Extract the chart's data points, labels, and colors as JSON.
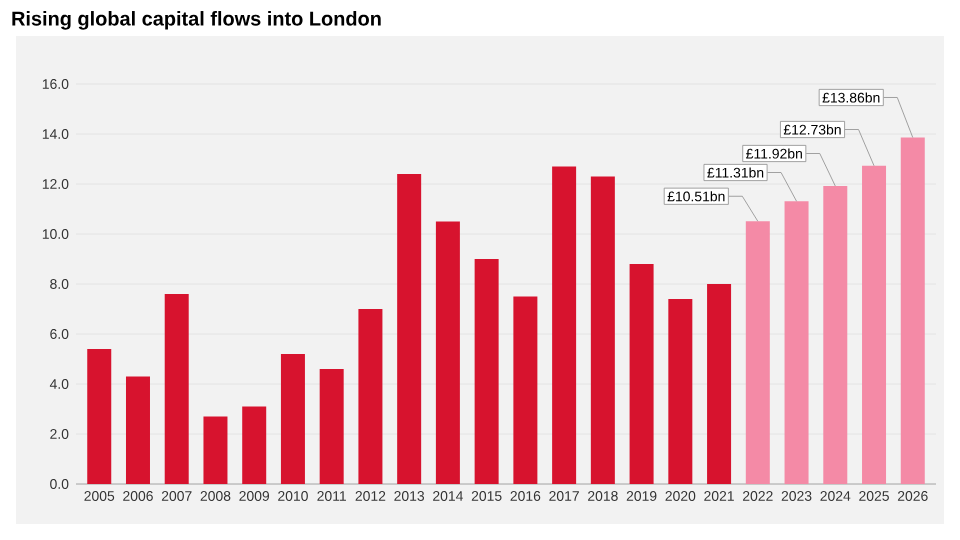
{
  "chart_data": {
    "type": "bar",
    "title": "Rising global capital flows into London",
    "categories": [
      "2005",
      "2006",
      "2007",
      "2008",
      "2009",
      "2010",
      "2011",
      "2012",
      "2013",
      "2014",
      "2015",
      "2016",
      "2017",
      "2018",
      "2019",
      "2020",
      "2021",
      "2022",
      "2023",
      "2024",
      "2025",
      "2026"
    ],
    "values": [
      5.4,
      4.3,
      7.6,
      2.7,
      3.1,
      5.2,
      4.6,
      7.0,
      12.4,
      10.5,
      9.0,
      7.5,
      12.7,
      12.3,
      8.8,
      7.4,
      8.0,
      10.51,
      11.31,
      11.92,
      12.73,
      13.86
    ],
    "colors": [
      "#d7132e",
      "#d7132e",
      "#d7132e",
      "#d7132e",
      "#d7132e",
      "#d7132e",
      "#d7132e",
      "#d7132e",
      "#d7132e",
      "#d7132e",
      "#d7132e",
      "#d7132e",
      "#d7132e",
      "#d7132e",
      "#d7132e",
      "#d7132e",
      "#d7132e",
      "#f48aa6",
      "#f48aa6",
      "#f48aa6",
      "#f48aa6",
      "#f48aa6"
    ],
    "value_labels": [
      null,
      null,
      null,
      null,
      null,
      null,
      null,
      null,
      null,
      null,
      null,
      null,
      null,
      null,
      null,
      null,
      null,
      "£10.51bn",
      "£11.31bn",
      "£11.92bn",
      "£12.73bn",
      "£13.86bn"
    ],
    "ylim": [
      0,
      16
    ],
    "yticks": [
      {
        "value": 0,
        "label": "0.0"
      },
      {
        "value": 2,
        "label": "2.0"
      },
      {
        "value": 4,
        "label": "4.0"
      },
      {
        "value": 6,
        "label": "6.0"
      },
      {
        "value": 8,
        "label": "8.0"
      },
      {
        "value": 10,
        "label": "10.0"
      },
      {
        "value": 12,
        "label": "12.0"
      },
      {
        "value": 14,
        "label": "14.0"
      },
      {
        "value": 16,
        "label": "16.0"
      }
    ],
    "grid": "y"
  }
}
